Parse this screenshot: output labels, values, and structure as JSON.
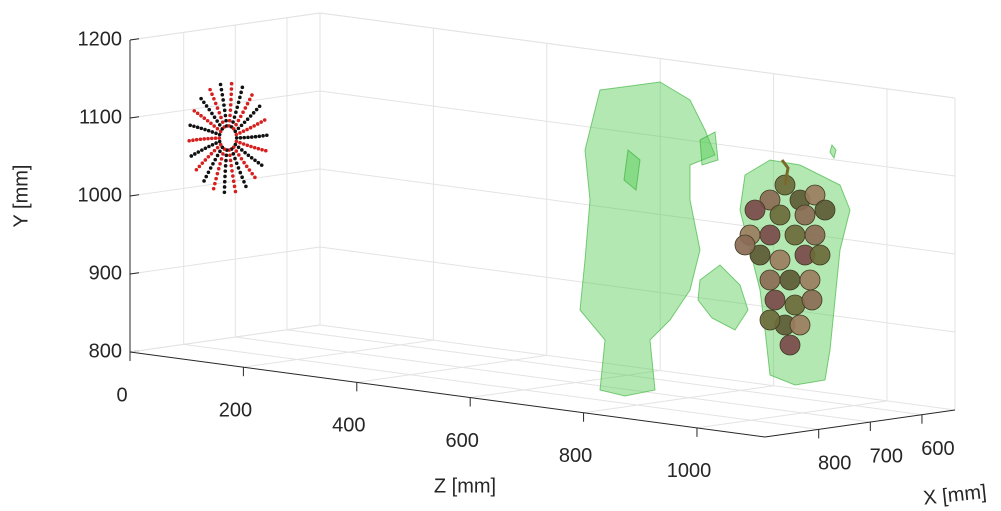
{
  "chart_data": {
    "type": "scatter3d",
    "xlabel": "X [mm]",
    "ylabel": "Y [mm]",
    "zlabel": "Z [mm]",
    "xlim": [
      536,
      904
    ],
    "xticks": [
      600,
      700,
      800
    ],
    "ylim": [
      800,
      1200
    ],
    "yticks": [
      800,
      900,
      1000,
      1100,
      1200
    ],
    "zlim": [
      0,
      1120
    ],
    "zticks": [
      0,
      200,
      400,
      600,
      800,
      1000
    ],
    "grid": true
  }
}
